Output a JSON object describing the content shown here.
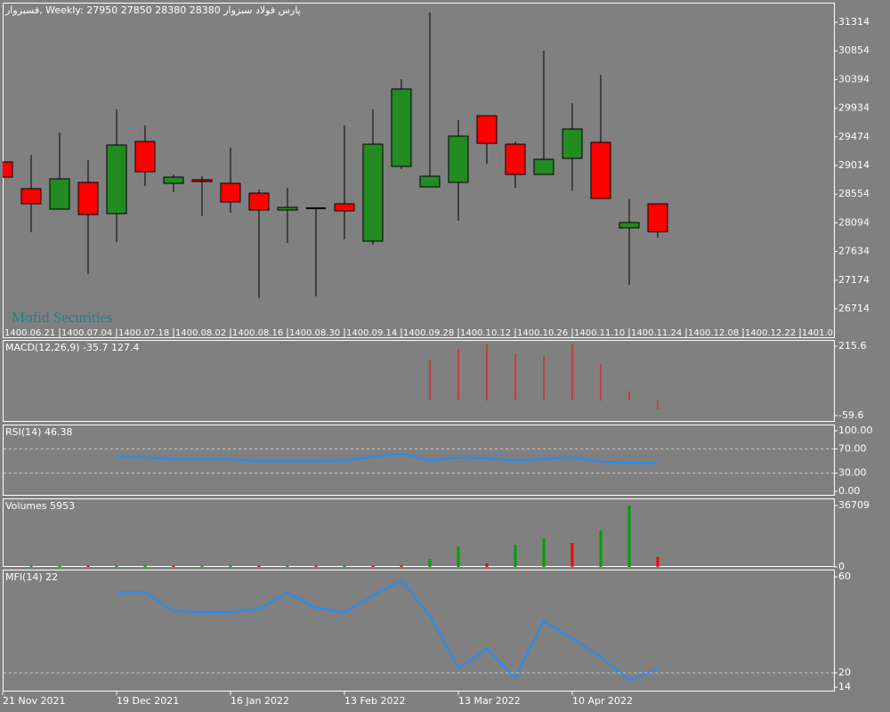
{
  "chart_data": [
    {
      "type": "candlestick",
      "title": "فسبزوار, Weekly:  27950 27850 28380 28380  پارس فولاد سبزوار",
      "watermark": "Mofid Securities",
      "categories": [
        "21 Nov 2021",
        null,
        null,
        null,
        "19 Dec 2021",
        null,
        null,
        null,
        "16 Jan 2022",
        null,
        null,
        null,
        "13 Feb 2022",
        null,
        null,
        null,
        "13 Mar 2022",
        null,
        null,
        null,
        "10 Apr 2022",
        null,
        null,
        null
      ],
      "top_axis_labels": [
        "1400.06.21",
        "1400.07.04",
        "1400.07.18",
        "1400.08.02",
        "1400.08.16",
        "1400.08.30",
        "1400.09.14",
        "1400.09.28",
        "1400.10.12",
        "1400.10.26",
        "1400.11.10",
        "1400.11.24",
        "1400.12.08",
        "1400.12.22",
        "1401.0"
      ],
      "open": [
        29071,
        28643,
        28314,
        28743,
        28243,
        29400,
        28728,
        28786,
        28729,
        28571,
        28300,
        28329,
        28400,
        27800,
        29000,
        28671,
        28743,
        29814,
        29357,
        28871,
        29129,
        29386,
        28014,
        28400
      ],
      "high": [
        29071,
        29185,
        29543,
        29100,
        29914,
        29657,
        28871,
        28843,
        29300,
        28628,
        28657,
        28343,
        29657,
        29914,
        30400,
        31471,
        29743,
        29814,
        29400,
        30857,
        30014,
        30471,
        28471,
        28400
      ],
      "low": [
        28828,
        27943,
        28314,
        27271,
        27786,
        28686,
        28586,
        28200,
        28257,
        26886,
        27771,
        26914,
        27829,
        27743,
        28957,
        28671,
        28129,
        29043,
        28657,
        28871,
        28614,
        28486,
        27100,
        27857
      ],
      "close": [
        28828,
        28400,
        28800,
        28228,
        29343,
        28914,
        28828,
        28757,
        28429,
        28300,
        28343,
        28329,
        28286,
        29357,
        30243,
        28843,
        29486,
        29371,
        28871,
        29114,
        29600,
        28486,
        28100,
        27950
      ],
      "up_color": "#228b22",
      "down_color": "#ff0000",
      "ylim": [
        26243,
        31628
      ],
      "yticks": [
        31314,
        30854,
        30394,
        29934,
        29474,
        29014,
        28554,
        28094,
        27634,
        27174,
        26714
      ]
    },
    {
      "type": "bar",
      "title": "MACD(12,26,9) -35.7 127.4",
      "values": [
        null,
        null,
        null,
        null,
        null,
        null,
        null,
        null,
        null,
        null,
        null,
        null,
        null,
        null,
        null,
        162,
        205,
        223,
        187,
        177,
        223,
        144,
        37,
        -35.7
      ],
      "color": "#ff0000",
      "ylim": [
        -84.6,
        240.6
      ],
      "yticks": [
        215.6,
        -59.6
      ]
    },
    {
      "type": "line",
      "title": "RSI(14) 46.38",
      "values": [
        null,
        null,
        null,
        null,
        57,
        56,
        53,
        53,
        53,
        50,
        50,
        50,
        51,
        57,
        62,
        51,
        56,
        54,
        51,
        53,
        56,
        49,
        47,
        46.38
      ],
      "color": "#1e90ff",
      "levels": [
        70,
        30
      ],
      "ylim": [
        -7.4,
        110.3
      ],
      "yticks": [
        {
          "value": 100,
          "label": "100.00"
        },
        {
          "value": 70,
          "label": "70.00"
        },
        {
          "value": 30,
          "label": "30.00"
        },
        {
          "value": 0,
          "label": "0.00"
        }
      ]
    },
    {
      "type": "bar",
      "title": "Volumes 5953",
      "values": [
        null,
        900,
        900,
        900,
        900,
        900,
        900,
        900,
        900,
        900,
        900,
        900,
        900,
        900,
        900,
        4790,
        12240,
        2130,
        13300,
        17030,
        14370,
        21820,
        36709,
        5953
      ],
      "colors": [
        "#00a000",
        "#00a000",
        "#00a000",
        "#ff0000",
        "#00a000",
        "#00a000",
        "#ff0000",
        "#00a000",
        "#00a000",
        "#ff0000",
        "#00a000",
        "#ff0000",
        "#00a000",
        "#ff0000",
        "#ff0000",
        "#00a000",
        "#00a000",
        "#ff0000",
        "#00a000",
        "#00a000",
        "#ff0000",
        "#00a000",
        "#00a000",
        "#ff0000"
      ],
      "ylim": [
        0,
        40960
      ],
      "yticks": [
        36709,
        0
      ]
    },
    {
      "type": "line",
      "title": "MFI(14) 22",
      "values": [
        null,
        null,
        null,
        null,
        53.7,
        53.7,
        45.6,
        45.2,
        45.2,
        46.7,
        53.3,
        47,
        45.2,
        52.2,
        58.5,
        43.7,
        21.9,
        30,
        18.1,
        41.5,
        34.4,
        26.7,
        17,
        21.5
      ],
      "color": "#1e90ff",
      "levels": [
        20
      ],
      "ylim": [
        12.2,
        63
      ],
      "yticks": [
        60,
        20,
        14
      ]
    }
  ]
}
